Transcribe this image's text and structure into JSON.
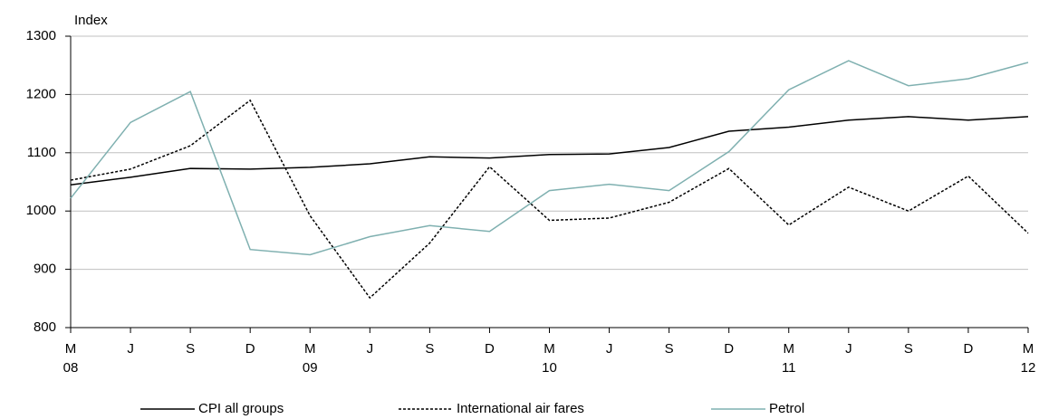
{
  "chart_data": {
    "type": "line",
    "y_axis_label": "Index",
    "categories": [
      "M",
      "J",
      "S",
      "D",
      "M",
      "J",
      "S",
      "D",
      "M",
      "J",
      "S",
      "D",
      "M",
      "J",
      "S",
      "D",
      "M"
    ],
    "category_years": [
      "08",
      null,
      null,
      null,
      "09",
      null,
      null,
      null,
      "10",
      null,
      null,
      null,
      "11",
      null,
      null,
      null,
      "12"
    ],
    "series": [
      {
        "name": "CPI all groups",
        "color": "#000000",
        "line_style": "solid",
        "values": [
          1045,
          1058,
          1073,
          1072,
          1075,
          1081,
          1093,
          1091,
          1097,
          1098,
          1109,
          1137,
          1144,
          1156,
          1162,
          1156,
          1162
        ]
      },
      {
        "name": "International air fares",
        "color": "#000000",
        "line_style": "dashed",
        "values": [
          1053,
          1072,
          1112,
          1190,
          992,
          851,
          945,
          1076,
          984,
          988,
          1015,
          1073,
          976,
          1041,
          1000,
          1060,
          962
        ]
      },
      {
        "name": "Petrol",
        "color": "#7fb0b0",
        "line_style": "solid",
        "values": [
          1022,
          1152,
          1205,
          934,
          925,
          956,
          975,
          965,
          1035,
          1046,
          1035,
          1102,
          1208,
          1258,
          1215,
          1227,
          1255
        ]
      }
    ],
    "ylim": [
      800,
      1300
    ],
    "yticks": [
      800,
      900,
      1000,
      1100,
      1200,
      1300
    ],
    "grid": true,
    "legend": "bottom"
  }
}
